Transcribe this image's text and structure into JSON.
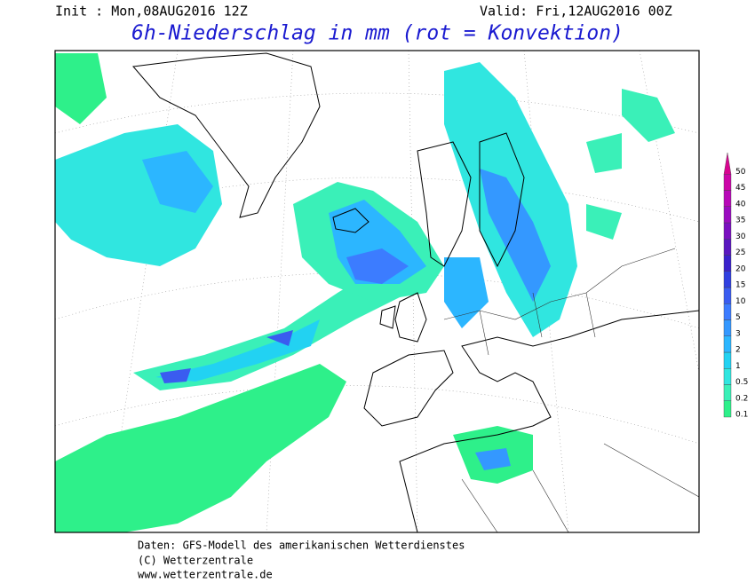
{
  "header": {
    "init": "Init : Mon,08AUG2016 12Z",
    "valid": "Valid: Fri,12AUG2016 00Z",
    "title": "6h-Niederschlag in mm (rot = Konvektion)"
  },
  "legend": {
    "levels": [
      {
        "label": "0.1",
        "color": "#2ef08a"
      },
      {
        "label": "0.2",
        "color": "#3af0b8"
      },
      {
        "label": "0.5",
        "color": "#30e6e0"
      },
      {
        "label": "1",
        "color": "#22d2f2"
      },
      {
        "label": "2",
        "color": "#2cb6ff"
      },
      {
        "label": "3",
        "color": "#3498ff"
      },
      {
        "label": "5",
        "color": "#3c7cff"
      },
      {
        "label": "10",
        "color": "#3a5cf0"
      },
      {
        "label": "15",
        "color": "#3040e0"
      },
      {
        "label": "20",
        "color": "#3a22cc"
      },
      {
        "label": "25",
        "color": "#5a18c0"
      },
      {
        "label": "30",
        "color": "#7a10c0"
      },
      {
        "label": "35",
        "color": "#9a0cc0"
      },
      {
        "label": "40",
        "color": "#b808b8"
      },
      {
        "label": "45",
        "color": "#cc06a8"
      },
      {
        "label": "50",
        "color": "#d80490"
      }
    ]
  },
  "footer": {
    "lines": [
      "Daten: GFS-Modell des amerikanischen Wetterdienstes",
      "(C) Wetterzentrale",
      "www.wetterzentrale.de"
    ]
  }
}
